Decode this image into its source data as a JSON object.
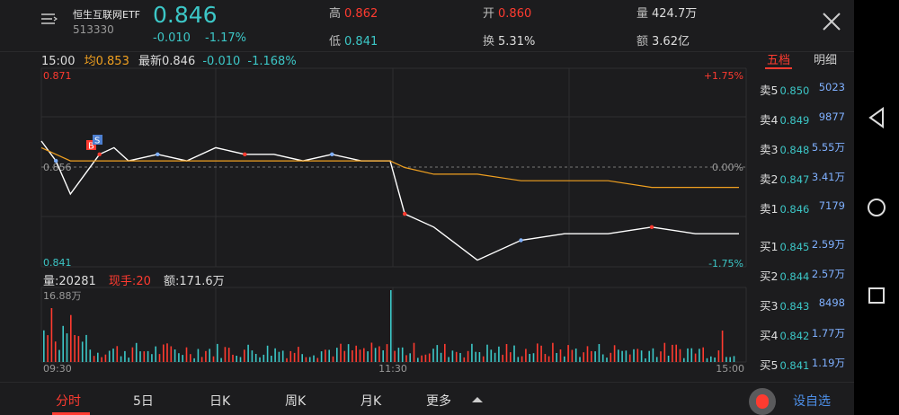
{
  "header": {
    "name": "恒生互联网ETF",
    "code": "513330",
    "price": "0.846",
    "change": "-0.010",
    "change_pct": "-1.17%",
    "high_label": "高",
    "high": "0.862",
    "low_label": "低",
    "low": "0.841",
    "open_label": "开",
    "open": "0.860",
    "turnover_label": "换",
    "turnover": "5.31%",
    "volume_label": "量",
    "volume": "424.7万",
    "amount_label": "额",
    "amount": "3.62亿"
  },
  "infoline": {
    "time": "15:00",
    "avg_label": "均",
    "avg": "0.853",
    "latest_label": "最新",
    "latest": "0.846",
    "change": "-0.010",
    "change_pct": "-1.168%"
  },
  "price_chart": {
    "y_top_label": "0.871",
    "y_bottom_label": "0.841",
    "y_mid_label": "0.856",
    "pct_top": "+1.75%",
    "pct_mid": "0.00%",
    "pct_bottom": "-1.75%",
    "markers": [
      "B",
      "S"
    ]
  },
  "volume_chart": {
    "volume_label": "量",
    "volume": "20281",
    "current_hand_label": "现手",
    "current_hand": "20",
    "amount_label": "额",
    "amount": "171.6万",
    "max_label": "16.88万",
    "x_labels": [
      "09:30",
      "11:30",
      "15:00"
    ]
  },
  "sidebar": {
    "tabs": [
      "五档",
      "明细"
    ],
    "asks": [
      {
        "label": "卖5",
        "price": "0.850",
        "vol": "5023"
      },
      {
        "label": "卖4",
        "price": "0.849",
        "vol": "9877"
      },
      {
        "label": "卖3",
        "price": "0.848",
        "vol": "5.55万"
      },
      {
        "label": "卖2",
        "price": "0.847",
        "vol": "3.41万"
      },
      {
        "label": "卖1",
        "price": "0.846",
        "vol": "7179"
      }
    ],
    "bids": [
      {
        "label": "买1",
        "price": "0.845",
        "vol": "2.59万"
      },
      {
        "label": "买2",
        "price": "0.844",
        "vol": "2.57万"
      },
      {
        "label": "买3",
        "price": "0.843",
        "vol": "8498"
      },
      {
        "label": "买4",
        "price": "0.842",
        "vol": "1.77万"
      },
      {
        "label": "买5",
        "price": "0.841",
        "vol": "1.19万"
      }
    ]
  },
  "bottom_tabs": [
    "分时",
    "5日",
    "日K",
    "周K",
    "月K",
    "更多"
  ],
  "custom_label": "设自选",
  "colors": {
    "up": "#ff3b30",
    "down": "#3cc7c7",
    "avg_line": "#f0a020",
    "price_line": "#ffffff",
    "bid_ask_vol": "#7fb0ff"
  },
  "chart_data": {
    "type": "line",
    "x": [
      "09:30",
      "09:35",
      "09:40",
      "09:45",
      "09:50",
      "09:55",
      "10:00",
      "10:10",
      "10:20",
      "10:30",
      "10:40",
      "10:50",
      "11:00",
      "11:10",
      "11:20",
      "11:30",
      "13:05",
      "13:15",
      "13:30",
      "13:45",
      "14:00",
      "14:15",
      "14:30",
      "14:45",
      "15:00"
    ],
    "series": [
      {
        "name": "最新",
        "values": [
          0.86,
          0.857,
          0.852,
          0.855,
          0.858,
          0.859,
          0.857,
          0.858,
          0.857,
          0.859,
          0.858,
          0.858,
          0.857,
          0.858,
          0.857,
          0.857,
          0.849,
          0.847,
          0.842,
          0.845,
          0.846,
          0.846,
          0.847,
          0.846,
          0.846
        ]
      },
      {
        "name": "均",
        "values": [
          0.859,
          0.858,
          0.857,
          0.857,
          0.857,
          0.857,
          0.857,
          0.857,
          0.857,
          0.857,
          0.857,
          0.857,
          0.857,
          0.857,
          0.857,
          0.857,
          0.856,
          0.855,
          0.855,
          0.854,
          0.854,
          0.854,
          0.853,
          0.853,
          0.853
        ]
      }
    ],
    "ylim": [
      0.841,
      0.871
    ]
  }
}
